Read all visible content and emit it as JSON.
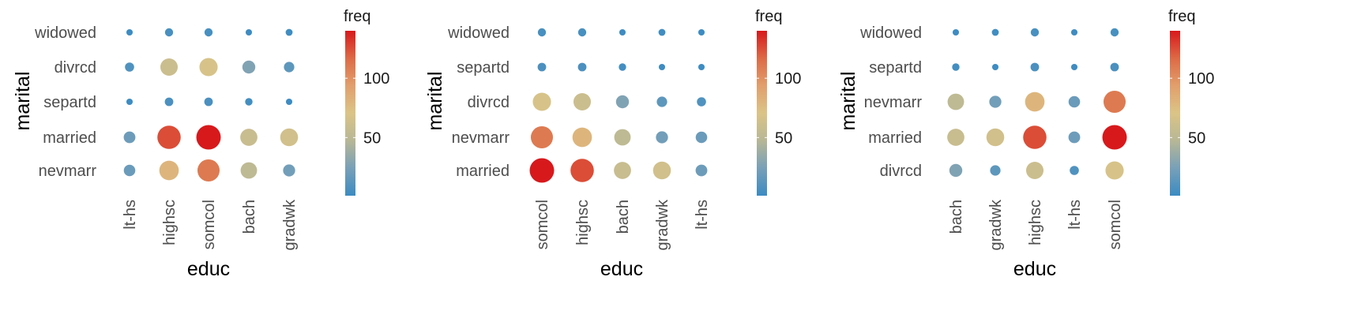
{
  "chart_data": [
    {
      "type": "scatter",
      "xlabel": "educ",
      "ylabel": "marital",
      "x_categories": [
        "lt-hs",
        "highsc",
        "somcol",
        "bach",
        "gradwk"
      ],
      "y_categories": [
        "nevmarr",
        "married",
        "separtd",
        "divrcd",
        "widowed"
      ],
      "points": [
        {
          "x": "lt-hs",
          "y": "widowed",
          "freq": 2
        },
        {
          "x": "highsc",
          "y": "widowed",
          "freq": 6
        },
        {
          "x": "somcol",
          "y": "widowed",
          "freq": 6
        },
        {
          "x": "bach",
          "y": "widowed",
          "freq": 2
        },
        {
          "x": "gradwk",
          "y": "widowed",
          "freq": 3
        },
        {
          "x": "lt-hs",
          "y": "divrcd",
          "freq": 9
        },
        {
          "x": "highsc",
          "y": "divrcd",
          "freq": 60
        },
        {
          "x": "somcol",
          "y": "divrcd",
          "freq": 68
        },
        {
          "x": "bach",
          "y": "divrcd",
          "freq": 27
        },
        {
          "x": "gradwk",
          "y": "divrcd",
          "freq": 14
        },
        {
          "x": "lt-hs",
          "y": "separtd",
          "freq": 2
        },
        {
          "x": "highsc",
          "y": "separtd",
          "freq": 7
        },
        {
          "x": "somcol",
          "y": "separtd",
          "freq": 7
        },
        {
          "x": "bach",
          "y": "separtd",
          "freq": 4
        },
        {
          "x": "gradwk",
          "y": "separtd",
          "freq": 2
        },
        {
          "x": "lt-hs",
          "y": "married",
          "freq": 20
        },
        {
          "x": "highsc",
          "y": "married",
          "freq": 125
        },
        {
          "x": "somcol",
          "y": "married",
          "freq": 140
        },
        {
          "x": "bach",
          "y": "married",
          "freq": 58
        },
        {
          "x": "gradwk",
          "y": "married",
          "freq": 64
        },
        {
          "x": "lt-hs",
          "y": "nevmarr",
          "freq": 19
        },
        {
          "x": "highsc",
          "y": "nevmarr",
          "freq": 80
        },
        {
          "x": "somcol",
          "y": "nevmarr",
          "freq": 110
        },
        {
          "x": "bach",
          "y": "nevmarr",
          "freq": 52
        },
        {
          "x": "gradwk",
          "y": "nevmarr",
          "freq": 22
        }
      ],
      "legend": {
        "title": "freq",
        "ticks": [
          50,
          100
        ],
        "range": [
          1,
          140
        ],
        "position": "right"
      }
    },
    {
      "type": "scatter",
      "xlabel": "educ",
      "ylabel": "marital",
      "x_categories": [
        "somcol",
        "highsc",
        "bach",
        "gradwk",
        "lt-hs"
      ],
      "y_categories": [
        "married",
        "nevmarr",
        "divrcd",
        "separtd",
        "widowed"
      ],
      "points": [
        {
          "x": "somcol",
          "y": "widowed",
          "freq": 6
        },
        {
          "x": "highsc",
          "y": "widowed",
          "freq": 6
        },
        {
          "x": "bach",
          "y": "widowed",
          "freq": 2
        },
        {
          "x": "gradwk",
          "y": "widowed",
          "freq": 3
        },
        {
          "x": "lt-hs",
          "y": "widowed",
          "freq": 2
        },
        {
          "x": "somcol",
          "y": "separtd",
          "freq": 7
        },
        {
          "x": "highsc",
          "y": "separtd",
          "freq": 7
        },
        {
          "x": "bach",
          "y": "separtd",
          "freq": 4
        },
        {
          "x": "gradwk",
          "y": "separtd",
          "freq": 2
        },
        {
          "x": "lt-hs",
          "y": "separtd",
          "freq": 2
        },
        {
          "x": "somcol",
          "y": "divrcd",
          "freq": 68
        },
        {
          "x": "highsc",
          "y": "divrcd",
          "freq": 60
        },
        {
          "x": "bach",
          "y": "divrcd",
          "freq": 27
        },
        {
          "x": "gradwk",
          "y": "divrcd",
          "freq": 14
        },
        {
          "x": "lt-hs",
          "y": "divrcd",
          "freq": 9
        },
        {
          "x": "somcol",
          "y": "nevmarr",
          "freq": 110
        },
        {
          "x": "highsc",
          "y": "nevmarr",
          "freq": 80
        },
        {
          "x": "bach",
          "y": "nevmarr",
          "freq": 52
        },
        {
          "x": "gradwk",
          "y": "nevmarr",
          "freq": 22
        },
        {
          "x": "lt-hs",
          "y": "nevmarr",
          "freq": 19
        },
        {
          "x": "somcol",
          "y": "married",
          "freq": 140
        },
        {
          "x": "highsc",
          "y": "married",
          "freq": 125
        },
        {
          "x": "bach",
          "y": "married",
          "freq": 58
        },
        {
          "x": "gradwk",
          "y": "married",
          "freq": 64
        },
        {
          "x": "lt-hs",
          "y": "married",
          "freq": 20
        }
      ],
      "legend": {
        "title": "freq",
        "ticks": [
          50,
          100
        ],
        "range": [
          1,
          140
        ],
        "position": "right"
      }
    },
    {
      "type": "scatter",
      "xlabel": "educ",
      "ylabel": "marital",
      "x_categories": [
        "bach",
        "gradwk",
        "highsc",
        "lt-hs",
        "somcol"
      ],
      "y_categories": [
        "divrcd",
        "married",
        "nevmarr",
        "separtd",
        "widowed"
      ],
      "points": [
        {
          "x": "bach",
          "y": "widowed",
          "freq": 2
        },
        {
          "x": "gradwk",
          "y": "widowed",
          "freq": 3
        },
        {
          "x": "highsc",
          "y": "widowed",
          "freq": 6
        },
        {
          "x": "lt-hs",
          "y": "widowed",
          "freq": 2
        },
        {
          "x": "somcol",
          "y": "widowed",
          "freq": 6
        },
        {
          "x": "bach",
          "y": "separtd",
          "freq": 4
        },
        {
          "x": "gradwk",
          "y": "separtd",
          "freq": 2
        },
        {
          "x": "highsc",
          "y": "separtd",
          "freq": 7
        },
        {
          "x": "lt-hs",
          "y": "separtd",
          "freq": 2
        },
        {
          "x": "somcol",
          "y": "separtd",
          "freq": 7
        },
        {
          "x": "bach",
          "y": "nevmarr",
          "freq": 52
        },
        {
          "x": "gradwk",
          "y": "nevmarr",
          "freq": 22
        },
        {
          "x": "highsc",
          "y": "nevmarr",
          "freq": 80
        },
        {
          "x": "lt-hs",
          "y": "nevmarr",
          "freq": 19
        },
        {
          "x": "somcol",
          "y": "nevmarr",
          "freq": 110
        },
        {
          "x": "bach",
          "y": "married",
          "freq": 58
        },
        {
          "x": "gradwk",
          "y": "married",
          "freq": 64
        },
        {
          "x": "highsc",
          "y": "married",
          "freq": 125
        },
        {
          "x": "lt-hs",
          "y": "married",
          "freq": 20
        },
        {
          "x": "somcol",
          "y": "married",
          "freq": 140
        },
        {
          "x": "bach",
          "y": "divrcd",
          "freq": 27
        },
        {
          "x": "gradwk",
          "y": "divrcd",
          "freq": 14
        },
        {
          "x": "highsc",
          "y": "divrcd",
          "freq": 60
        },
        {
          "x": "lt-hs",
          "y": "divrcd",
          "freq": 9
        },
        {
          "x": "somcol",
          "y": "divrcd",
          "freq": 68
        }
      ],
      "legend": {
        "title": "freq",
        "ticks": [
          50,
          100
        ],
        "range": [
          1,
          140
        ],
        "position": "right"
      }
    }
  ],
  "colors": {
    "low": "#3b8bc2",
    "mid": "#d8c98a",
    "high": "#d7191c",
    "stops": [
      "#3b8bc2",
      "#78a0b8",
      "#b7b796",
      "#dbc487",
      "#e19f6c",
      "#dd6a46",
      "#d7191c"
    ]
  }
}
